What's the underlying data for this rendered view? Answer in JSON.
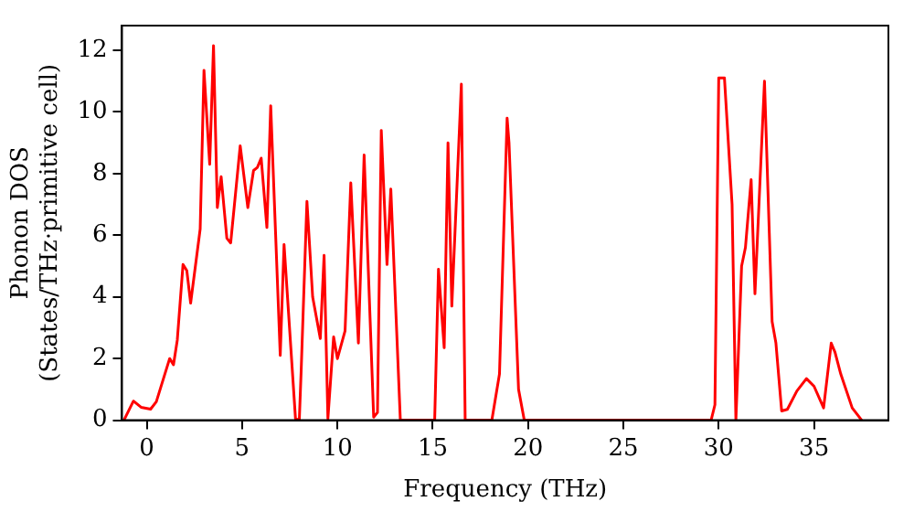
{
  "chart_data": {
    "type": "line",
    "xlabel": "Frequency (THz)",
    "ylabel": "Phonon DOS\n(States/THz·primitive cell)",
    "xlim": [
      -1.3,
      38.9
    ],
    "xticks": [
      0,
      5,
      10,
      15,
      20,
      25,
      30,
      35
    ],
    "ylim": [
      0,
      12.8
    ],
    "yticks": [
      0,
      2,
      4,
      6,
      8,
      10,
      12
    ],
    "grid": false,
    "legend": false,
    "marker": "none",
    "line_style": "solid",
    "series": [
      {
        "color": "#ff0000",
        "x": [
          -1.2,
          -0.7,
          -0.3,
          0.2,
          0.5,
          1.2,
          1.4,
          1.6,
          1.9,
          2.1,
          2.3,
          2.8,
          3.0,
          3.3,
          3.5,
          3.7,
          3.9,
          4.2,
          4.4,
          4.9,
          5.3,
          5.6,
          5.8,
          6.0,
          6.3,
          6.5,
          7.0,
          7.2,
          7.8,
          8.0,
          8.1,
          8.4,
          8.7,
          9.1,
          9.3,
          9.5,
          9.8,
          10.0,
          10.4,
          10.7,
          11.1,
          11.4,
          11.9,
          12.1,
          12.3,
          12.6,
          12.8,
          13.3,
          15.1,
          15.3,
          15.6,
          15.8,
          16.0,
          16.5,
          16.7,
          18.1,
          18.5,
          18.9,
          19.0,
          19.5,
          19.8,
          29.6,
          29.8,
          30.0,
          30.3,
          30.7,
          30.9,
          31.2,
          31.4,
          31.7,
          31.9,
          32.4,
          32.8,
          33.0,
          33.3,
          33.6,
          34.1,
          34.6,
          35.0,
          35.5,
          35.9,
          36.1,
          36.4,
          37.0,
          37.5
        ],
        "values": [
          0,
          0.62,
          0.42,
          0.36,
          0.6,
          2.0,
          1.8,
          2.6,
          5.05,
          4.85,
          3.8,
          6.2,
          11.35,
          8.3,
          12.15,
          6.9,
          7.9,
          5.9,
          5.75,
          8.9,
          6.9,
          8.1,
          8.2,
          8.5,
          6.25,
          10.2,
          2.1,
          5.7,
          0.05,
          0,
          1.65,
          7.1,
          4.0,
          2.65,
          5.35,
          0.05,
          2.7,
          2.0,
          2.9,
          7.7,
          2.5,
          8.6,
          0.1,
          0.25,
          9.4,
          5.05,
          7.5,
          0,
          0,
          4.9,
          2.35,
          9.0,
          3.7,
          10.9,
          0,
          0,
          1.5,
          9.8,
          9.0,
          1.0,
          0,
          0,
          0.5,
          11.1,
          11.1,
          7.0,
          0,
          5.0,
          5.6,
          7.8,
          4.1,
          11.0,
          3.2,
          2.5,
          0.3,
          0.35,
          0.95,
          1.35,
          1.1,
          0.4,
          2.5,
          2.2,
          1.5,
          0.4,
          0
        ]
      }
    ]
  }
}
